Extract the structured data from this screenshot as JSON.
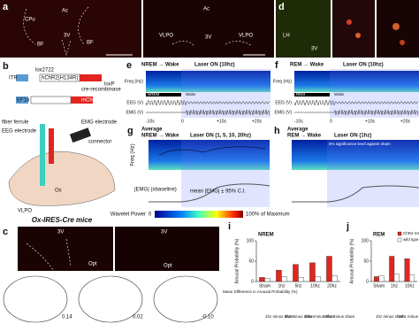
{
  "panel_a": {
    "label": "a",
    "texts": [
      "CPu",
      "Ac",
      "BF",
      "3V",
      "BF",
      "Ac",
      "3V",
      "VLPO",
      "VLPO"
    ]
  },
  "panel_d": {
    "label": "d",
    "texts": [
      "LH",
      "3V"
    ]
  },
  "panel_b": {
    "label": "b",
    "texts": [
      "ITR",
      "EF1α",
      "hChR2(H134R)",
      "mCherry",
      "lox2722",
      "loxP",
      "cre-recombinase",
      "fiber ferrule",
      "EEG electrode",
      "EMG electrode",
      "connector",
      "VLPO",
      "Ox",
      "Ox-IRES-Cre mice"
    ]
  },
  "panel_e": {
    "label": "e",
    "title": "NREM → Wake",
    "laser": "Laser ON (10hz)",
    "rows": [
      "Freq (Hz)",
      "EEG (V)",
      "EMG (V)"
    ],
    "states": [
      "NREM",
      "Wake"
    ],
    "times": [
      "-10s",
      "0",
      "+10s",
      "+20s"
    ]
  },
  "panel_f": {
    "label": "f",
    "title": "REM → Wake",
    "laser": "Laser ON (10hz)",
    "rows": [
      "Freq (Hz)",
      "EEG (V)",
      "EMG (V)"
    ],
    "states": [
      "REM",
      "Wake"
    ],
    "times": [
      "-10s",
      "0",
      "+10s",
      "+20s"
    ]
  },
  "panel_g": {
    "label": "g",
    "average": "Average",
    "title": "NREM → Wake",
    "laser": "Laser ON (1, 5, 10, 20hz)",
    "rows": [
      "Freq (Hz)",
      "|EMG| (xbaseline)"
    ],
    "legend": "mean |EMG| ± 95% C.I."
  },
  "panel_h": {
    "label": "h",
    "average": "Average",
    "title": "REM → Wake",
    "laser": "Laser ON (1hz)",
    "note": "5% significance level against sham"
  },
  "colorbar": {
    "title": "Wavelet Power",
    "min": "0",
    "max": "100% of Maximum"
  },
  "panel_c": {
    "label": "c",
    "texts": [
      "3V",
      "Opt",
      "3V",
      "Opt"
    ],
    "coords": [
      "0.14",
      "0.02",
      "-0.10"
    ]
  },
  "panel_i": {
    "label": "i",
    "diff_label": "Mean Difference in Arousal Probability (%)",
    "diffs": [
      "1hz minus sham",
      "5hz minus sham",
      "10hz minus sham",
      "20hz minus sham"
    ]
  },
  "panel_j": {
    "label": "j",
    "diffs": [
      "1hz minus sham",
      "10hz minus sham"
    ]
  },
  "chart_data": [
    {
      "type": "bar",
      "title": "NREM",
      "y_label": "Arousal Probability (%)",
      "categories": [
        "Sham",
        "1hz",
        "5hz",
        "10hz",
        "20hz"
      ],
      "series": [
        {
          "color": "#e0261f",
          "values": [
            10,
            28,
            42,
            46,
            62
          ]
        },
        {
          "color": "#ffffff",
          "values": [
            8,
            12,
            10,
            12,
            14
          ]
        }
      ],
      "ylim": [
        0,
        100
      ],
      "yticks": [
        0,
        50,
        100
      ]
    },
    {
      "type": "bar",
      "title": "REM",
      "y_label": "Arousal Probability (%)",
      "categories": [
        "Sham",
        "1hz",
        "10hz"
      ],
      "series": [
        {
          "name": "ChR2 mCherry",
          "color": "#e0261f",
          "values": [
            12,
            62,
            56
          ]
        },
        {
          "name": "wild type",
          "color": "#ffffff",
          "values": [
            14,
            18,
            16
          ]
        }
      ],
      "ylim": [
        0,
        100
      ],
      "yticks": [
        0,
        50,
        100
      ]
    }
  ]
}
